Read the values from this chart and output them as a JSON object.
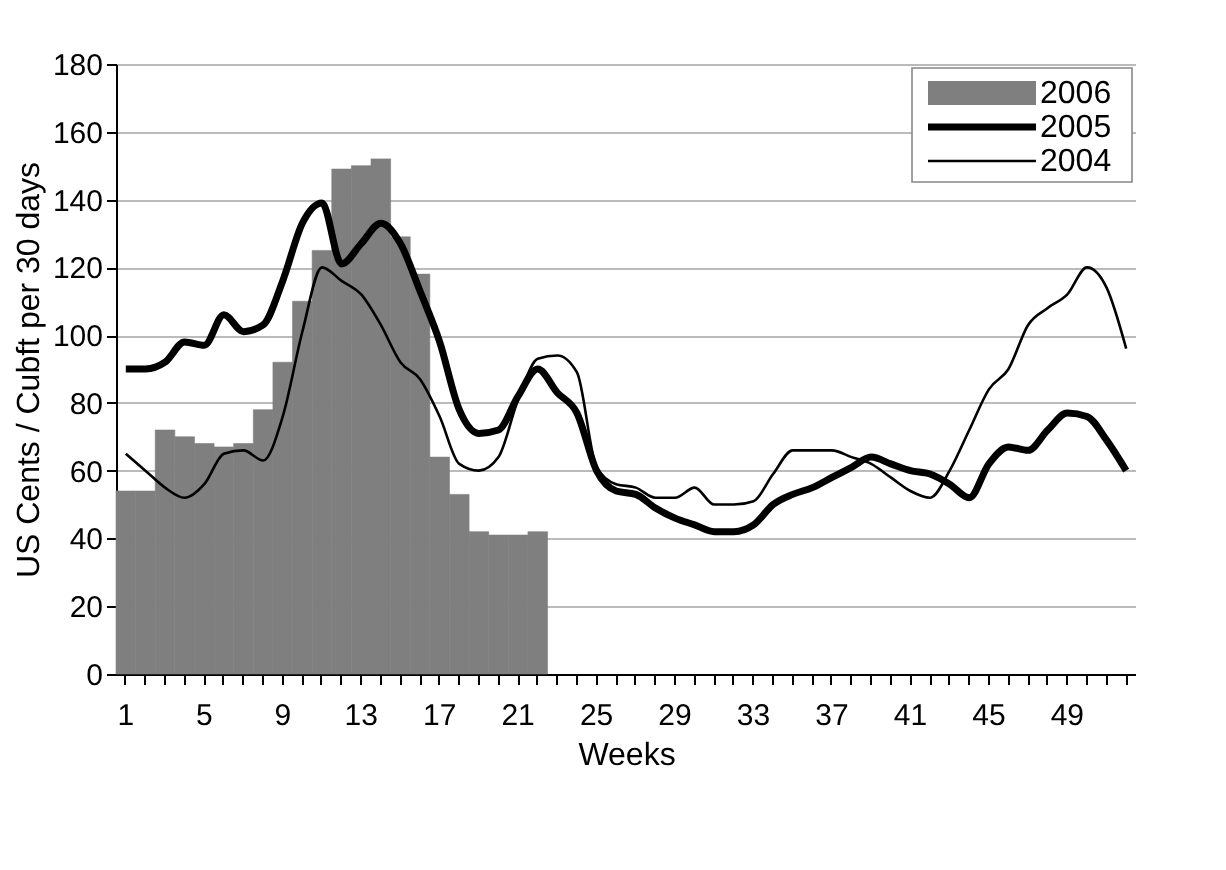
{
  "chart_data": {
    "type": "bar",
    "xlabel": "Weeks",
    "ylabel": "US Cents / Cubft per 30 days",
    "categories": [
      "1",
      null,
      null,
      null,
      "5",
      null,
      null,
      null,
      "9",
      null,
      null,
      null,
      "13",
      null,
      null,
      null,
      "17",
      null,
      null,
      null,
      "21",
      null,
      null,
      null,
      "25",
      null,
      null,
      null,
      "29",
      null,
      null,
      null,
      "33",
      null,
      null,
      null,
      "37",
      null,
      null,
      null,
      "41",
      null,
      null,
      null,
      "45",
      null,
      null,
      null,
      "49",
      null,
      null,
      null
    ],
    "series": [
      {
        "name": "2006",
        "color": "#7f7f7f",
        "values": [
          54,
          54,
          72,
          70,
          68,
          67,
          68,
          78,
          92,
          110,
          125,
          149,
          150,
          152,
          129,
          118,
          64,
          53,
          42,
          41,
          41,
          42,
          null,
          null,
          null,
          null,
          null,
          null,
          null,
          null,
          null,
          null,
          null,
          null,
          null,
          null,
          null,
          null,
          null,
          null,
          null,
          null,
          null,
          null,
          null,
          null,
          null,
          null,
          null,
          null,
          null,
          null
        ]
      },
      {
        "name": "2005",
        "type": "line",
        "color": "#000000",
        "values": [
          90,
          90,
          92,
          98,
          97,
          106,
          101,
          103,
          116,
          133,
          139,
          121,
          127,
          133,
          127,
          113,
          98,
          78,
          71,
          72,
          82,
          90,
          83,
          77,
          60,
          54,
          53,
          49,
          46,
          44,
          42,
          42,
          44,
          50,
          53,
          55,
          58,
          61,
          64,
          62,
          60,
          59,
          56,
          52,
          62,
          67,
          66,
          72,
          77,
          76,
          69,
          60
        ]
      },
      {
        "name": "2004",
        "type": "line",
        "color": "#000000",
        "values": [
          65,
          60,
          55,
          52,
          56,
          65,
          66,
          63,
          76,
          101,
          120,
          116,
          112,
          103,
          92,
          87,
          76,
          62,
          60,
          64,
          81,
          93,
          94,
          89,
          61,
          56,
          55,
          52,
          52,
          55,
          50,
          50,
          51,
          59,
          66,
          66,
          66,
          64,
          62,
          58,
          54,
          52,
          60,
          72,
          84,
          90,
          103,
          108,
          112,
          120,
          114,
          96
        ]
      }
    ],
    "ylim": [
      0,
      180
    ],
    "yticks": [
      0,
      20,
      40,
      60,
      80,
      100,
      120,
      140,
      160,
      180
    ],
    "grid": "y",
    "legend": "top right"
  }
}
